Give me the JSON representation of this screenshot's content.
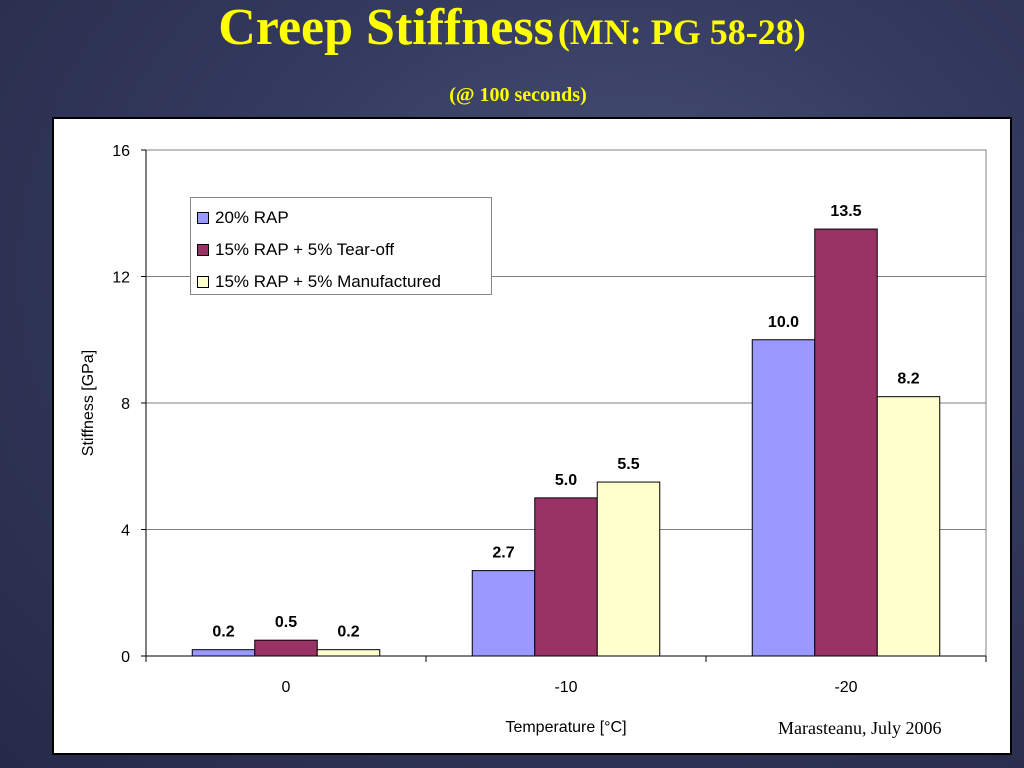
{
  "slide": {
    "title_main": "Creep Stiffness",
    "title_sub": "(MN: PG 58-28)",
    "subtitle": "(@ 100 seconds)",
    "credit": "Marasteanu, July 2006"
  },
  "chart_data": {
    "type": "bar",
    "categories": [
      "0",
      "-10",
      "-20"
    ],
    "series": [
      {
        "name": "20% RAP",
        "values": [
          0.2,
          2.7,
          10.0
        ],
        "labels": [
          "0.2",
          "2.7",
          "10.0"
        ],
        "color": "#9999ff"
      },
      {
        "name": "15% RAP + 5% Tear-off",
        "values": [
          0.5,
          5.0,
          13.5
        ],
        "labels": [
          "0.5",
          "5.0",
          "13.5"
        ],
        "color": "#993366"
      },
      {
        "name": "15% RAP + 5% Manufactured",
        "values": [
          0.2,
          5.5,
          8.2
        ],
        "labels": [
          "0.2",
          "5.5",
          "8.2"
        ],
        "color": "#ffffcc"
      }
    ],
    "xlabel": "Temperature [°C]",
    "ylabel": "Stiffness [GPa]",
    "ylim": [
      0,
      16
    ],
    "yticks": [
      0,
      4,
      8,
      12,
      16
    ],
    "grid": true,
    "legend": "top-left"
  }
}
